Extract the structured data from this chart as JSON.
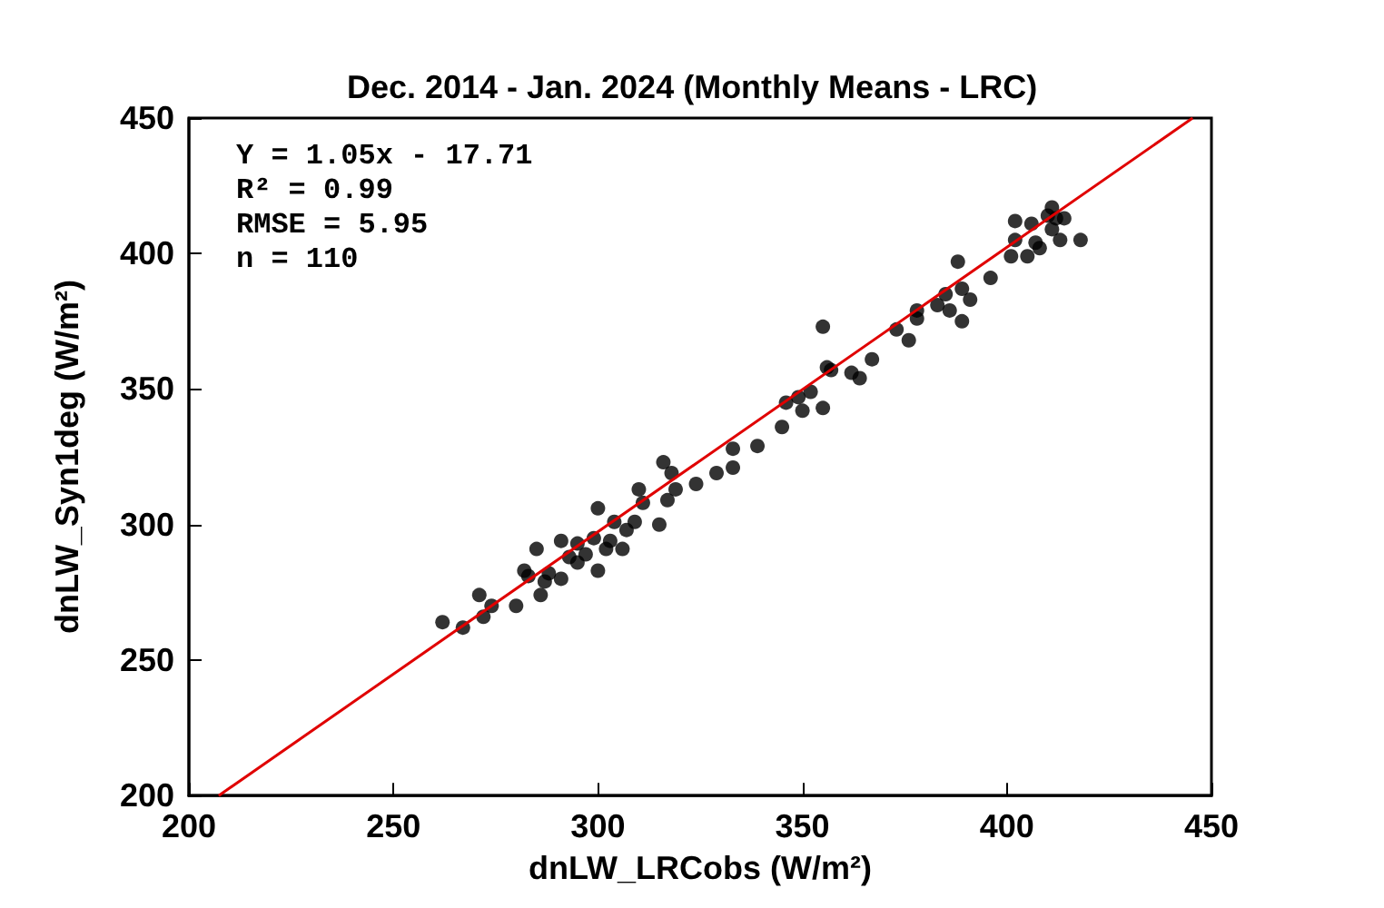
{
  "chart_data": {
    "type": "scatter",
    "title": "Dec. 2014 - Jan. 2024 (Monthly Means - LRC)",
    "xlabel": "dnLW_LRCobs (W/m²)",
    "ylabel": "dnLW_Syn1deg (W/m²)",
    "annotations": [
      "Y = 1.05x - 17.71",
      "R² = 0.99",
      "RMSE = 5.95",
      "n = 110"
    ],
    "xlim": [
      200,
      450
    ],
    "ylim": [
      200,
      450
    ],
    "xticks": [
      200,
      250,
      300,
      350,
      400,
      450
    ],
    "yticks": [
      200,
      250,
      300,
      350,
      400,
      450
    ],
    "grid": false,
    "marker": "circle",
    "series": [
      {
        "color": "#000000",
        "x": [
          262,
          267,
          271,
          272,
          274,
          280,
          282,
          283,
          285,
          286,
          287,
          288,
          291,
          291,
          293,
          295,
          295,
          297,
          299,
          300,
          300,
          302,
          303,
          304,
          306,
          307,
          309,
          310,
          311,
          315,
          316,
          317,
          318,
          319,
          324,
          329,
          333,
          333,
          339,
          345,
          346,
          350,
          349,
          352,
          355,
          355,
          356,
          357,
          362,
          364,
          367,
          373,
          376,
          378,
          378,
          383,
          385,
          386,
          389,
          388,
          389,
          391,
          396,
          401,
          402,
          402,
          405,
          406,
          407,
          408,
          410,
          411,
          411,
          412,
          413,
          414,
          418
        ],
        "values": [
          264,
          262,
          274,
          266,
          270,
          270,
          283,
          281,
          291,
          274,
          279,
          282,
          280,
          294,
          288,
          293,
          286,
          289,
          295,
          283,
          306,
          291,
          294,
          301,
          291,
          298,
          301,
          313,
          308,
          300,
          323,
          309,
          319,
          313,
          315,
          319,
          321,
          328,
          329,
          336,
          345,
          342,
          347,
          349,
          343,
          373,
          358,
          357,
          356,
          354,
          361,
          372,
          368,
          379,
          376,
          381,
          385,
          379,
          375,
          397,
          387,
          383,
          391,
          399,
          405,
          412,
          399,
          411,
          404,
          402,
          414,
          409,
          417,
          413,
          405,
          413,
          405
        ]
      },
      {
        "type": "line",
        "marker": "none",
        "color": "#e00000",
        "x": [
          207.3,
          445.4
        ],
        "values": [
          200,
          450
        ]
      }
    ]
  }
}
